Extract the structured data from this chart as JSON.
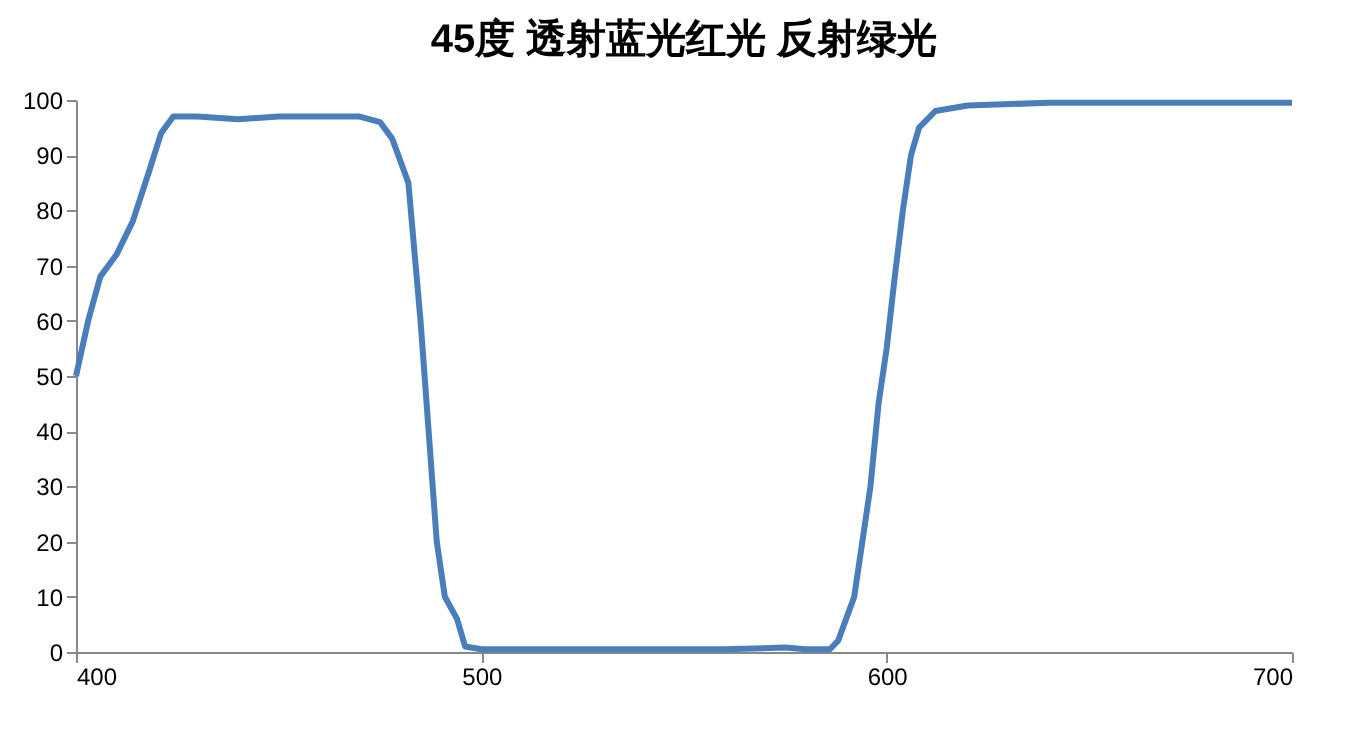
{
  "chart_data": {
    "type": "line",
    "title": "45度 透射蓝光红光 反射绿光",
    "x": [
      400,
      403,
      406,
      410,
      414,
      418,
      421,
      424,
      430,
      440,
      450,
      460,
      470,
      475,
      478,
      482,
      485,
      487,
      489,
      491,
      494,
      496,
      500,
      520,
      540,
      560,
      575,
      580,
      586,
      588,
      590,
      592,
      594,
      596,
      598,
      600,
      602,
      604,
      606,
      608,
      612,
      620,
      640,
      660,
      680,
      700
    ],
    "series": [
      {
        "color": "#4a7ebb",
        "values": [
          50,
          60,
          68,
          72,
          78,
          87,
          94,
          97,
          97,
          96.5,
          97,
          97,
          97,
          96,
          93,
          85,
          60,
          40,
          20,
          10,
          6,
          1,
          0.5,
          0.5,
          0.5,
          0.5,
          0.8,
          0.5,
          0.5,
          2,
          6,
          10,
          20,
          30,
          45,
          55,
          68,
          80,
          90,
          95,
          98,
          99,
          99.5,
          99.5,
          99.5,
          99.5
        ]
      }
    ],
    "xlim": [
      400,
      700
    ],
    "xticks": [
      400,
      500,
      600,
      700
    ],
    "ylim": [
      0,
      100
    ],
    "yticks": [
      0,
      10,
      20,
      30,
      40,
      50,
      60,
      70,
      80,
      90,
      100
    ],
    "grid": false,
    "legend": false,
    "marker": "none",
    "line_style": "solid"
  }
}
